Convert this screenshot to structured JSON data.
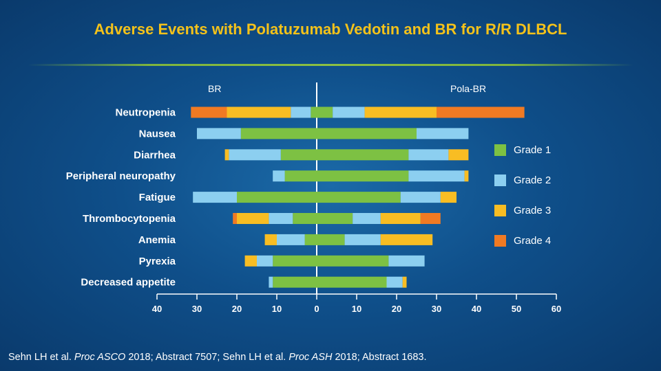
{
  "title": "Adverse Events with Polatuzumab Vedotin and BR for R/R DLBCL",
  "column_labels": {
    "left": "BR",
    "right": "Pola-BR"
  },
  "footnote": {
    "part1": "Sehn LH et al. ",
    "journal1": "Proc ASCO",
    "part2": " 2018; Abstract 7507; Sehn LH et al. ",
    "journal2": "Proc ASH",
    "part3": " 2018; Abstract 1683."
  },
  "colors": {
    "grade1": "#7dc143",
    "grade2": "#8ccff0",
    "grade3": "#f8bd23",
    "grade4": "#f07a23",
    "background": "#0f4f8a",
    "title": "#f4c21a"
  },
  "chart_data": {
    "type": "bar",
    "orientation": "horizontal-diverging",
    "title": "Adverse Events with Polatuzumab Vedotin and BR for R/R DLBCL",
    "xlim": [
      -40,
      60
    ],
    "xticks": [
      -40,
      -30,
      -20,
      -10,
      0,
      10,
      20,
      30,
      40,
      50,
      60
    ],
    "xtick_labels": [
      "40",
      "30",
      "20",
      "10",
      "0",
      "10",
      "20",
      "30",
      "40",
      "50",
      "60"
    ],
    "categories": [
      "Neutropenia",
      "Nausea",
      "Diarrhea",
      "Peripheral neuropathy",
      "Fatigue",
      "Thrombocytopenia",
      "Anemia",
      "Pyrexia",
      "Decreased appetite"
    ],
    "groups": [
      "BR",
      "Pola-BR"
    ],
    "legend": [
      "Grade 1",
      "Grade 2",
      "Grade 3",
      "Grade 4"
    ],
    "legend_position": "right",
    "series": [
      {
        "name": "Grade 1",
        "BR": [
          1.5,
          19,
          9,
          8,
          20,
          6,
          3,
          11,
          11
        ],
        "Pola-BR": [
          4,
          25,
          23,
          23,
          21,
          9,
          7,
          18,
          17.5
        ]
      },
      {
        "name": "Grade 2",
        "BR": [
          5,
          11,
          13,
          3,
          11,
          6,
          7,
          4,
          1
        ],
        "Pola-BR": [
          8,
          13,
          10,
          14,
          10,
          7,
          9,
          9,
          4
        ]
      },
      {
        "name": "Grade 3",
        "BR": [
          16,
          0,
          1,
          0,
          0,
          8,
          3,
          3,
          0
        ],
        "Pola-BR": [
          18,
          0,
          5,
          1,
          4,
          10,
          13,
          0,
          1
        ]
      },
      {
        "name": "Grade 4",
        "BR": [
          9,
          0,
          0,
          0,
          0,
          1,
          0,
          0,
          0
        ],
        "Pola-BR": [
          22,
          0,
          0,
          0,
          0,
          5,
          0,
          0,
          0
        ]
      }
    ]
  }
}
